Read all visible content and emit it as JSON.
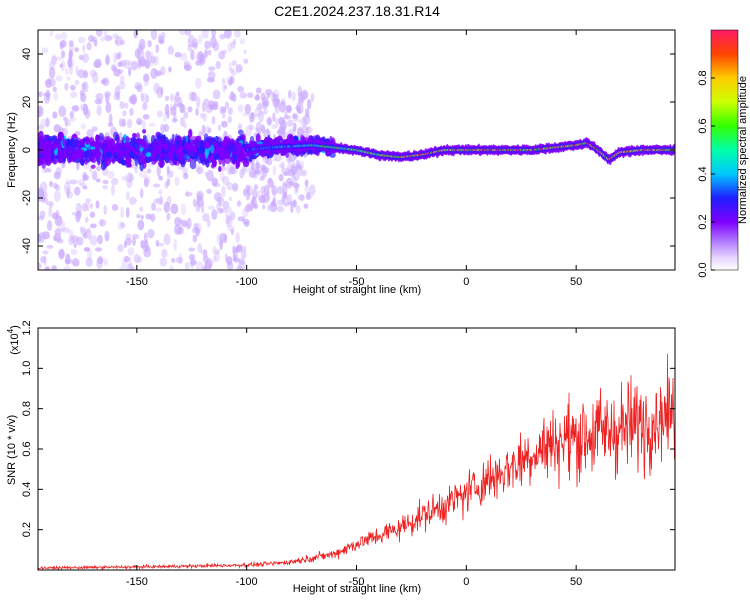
{
  "title": "C2E1.2024.237.18.31.R14",
  "chart_data": [
    {
      "type": "heatmap",
      "xlabel": "Height of straight line (km)",
      "ylabel": "Frequency (Hz)",
      "xlim": [
        -195,
        95
      ],
      "ylim": [
        -50,
        50
      ],
      "x_ticks": [
        -150,
        -100,
        -50,
        0,
        50
      ],
      "y_ticks": [
        -40,
        -20,
        0,
        20,
        40
      ],
      "colorbar": {
        "label": "Normalized spectral amplitude",
        "range": [
          0,
          1
        ],
        "ticks": [
          "0.0",
          "0.2",
          "0.4",
          "0.6",
          "0.8"
        ],
        "colormap": [
          "#ffffff",
          "#cc99ff",
          "#7f00ff",
          "#1e1eff",
          "#00c8ff",
          "#00ffaa",
          "#33ff00",
          "#ccff00",
          "#ffcc00",
          "#ff4400",
          "#ff1a66"
        ]
      },
      "ridge_frequency": {
        "x": [
          -195,
          -100,
          -90,
          -70,
          -60,
          -50,
          -40,
          -30,
          -20,
          -10,
          0,
          10,
          20,
          30,
          40,
          50,
          55,
          60,
          65,
          70,
          80,
          90,
          95
        ],
        "y": [
          0,
          0,
          1,
          2,
          1,
          0,
          -2,
          -3,
          -2,
          0,
          0,
          0,
          0,
          0,
          1,
          2,
          3,
          0,
          -4,
          -1,
          0,
          0,
          0
        ]
      }
    },
    {
      "type": "line",
      "xlabel": "Height of straight line (km)",
      "ylabel": "SNR (10 * v/v)",
      "multiplier_label": "(x10",
      "multiplier_exponent": "4",
      "xlim": [
        -195,
        95
      ],
      "ylim": [
        0,
        1.2
      ],
      "x_ticks": [
        -150,
        -100,
        -50,
        0,
        50
      ],
      "y_ticks": [
        "0.2",
        "0.4",
        "0.6",
        "0.8",
        "1.0",
        "1.2"
      ],
      "line_color": "#ee2222",
      "series": [
        {
          "x": [
            -195,
            -150,
            -120,
            -100,
            -90,
            -80,
            -70,
            -60,
            -50,
            -40,
            -30,
            -20,
            -10,
            0,
            10,
            20,
            30,
            40,
            50,
            60,
            70,
            80,
            90,
            95
          ],
          "y": [
            0.01,
            0.015,
            0.02,
            0.025,
            0.03,
            0.04,
            0.06,
            0.08,
            0.13,
            0.17,
            0.21,
            0.27,
            0.32,
            0.38,
            0.45,
            0.51,
            0.58,
            0.63,
            0.66,
            0.68,
            0.7,
            0.73,
            0.77,
            0.78
          ]
        }
      ]
    }
  ]
}
